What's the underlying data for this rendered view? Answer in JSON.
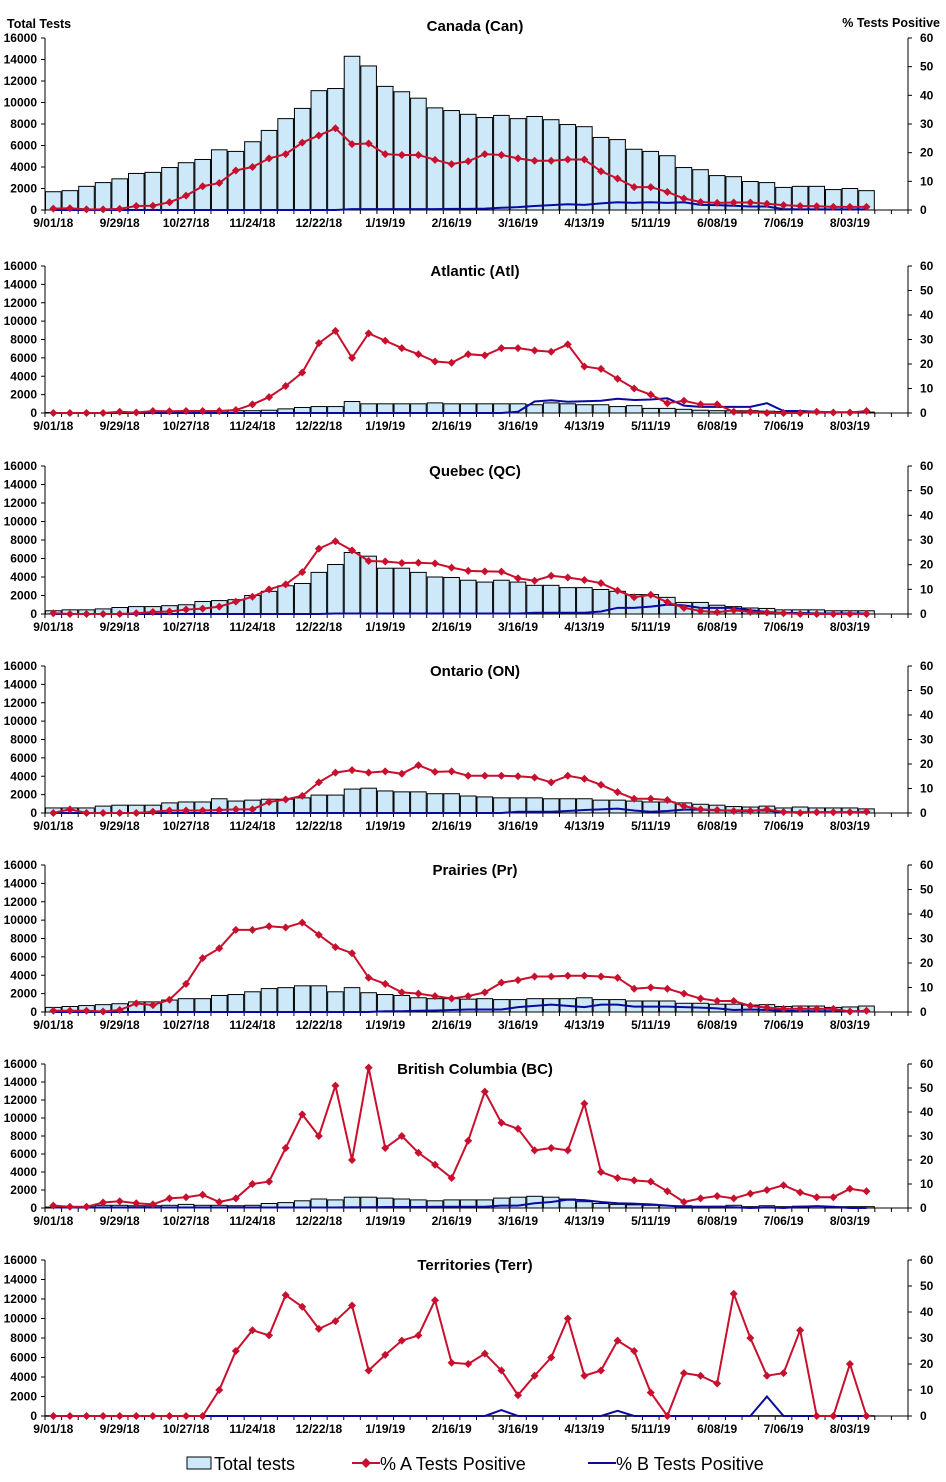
{
  "header": {
    "left_axis_title": "Total Tests",
    "right_axis_title": "% Tests Positive"
  },
  "legend": {
    "total": "Total tests",
    "a": "% A Tests Positive",
    "b": "% B Tests Positive"
  },
  "colors": {
    "bar_fill": "#cde8f8",
    "bar_stroke": "#000000",
    "a_line": "#c8102e",
    "b_line": "#0a0aa0"
  },
  "chart_data": {
    "type": "bar+line",
    "left_ylim": [
      0,
      16000
    ],
    "left_ticks": [
      "0",
      "2000",
      "4000",
      "6000",
      "8000",
      "10000",
      "12000",
      "14000",
      "16000"
    ],
    "right_ylim": [
      0,
      60
    ],
    "right_ticks": [
      "0",
      "10",
      "20",
      "30",
      "40",
      "50",
      "60"
    ],
    "x_tick_labels": [
      "9/01/18",
      "9/29/18",
      "10/27/18",
      "11/24/18",
      "12/22/18",
      "1/19/19",
      "2/16/19",
      "3/16/19",
      "4/13/19",
      "5/11/19",
      "6/08/19",
      "7/06/19",
      "8/03/19"
    ],
    "weeks": [
      "9/01/18",
      "9/08/18",
      "9/15/18",
      "9/22/18",
      "9/29/18",
      "10/06/18",
      "10/13/18",
      "10/20/18",
      "10/27/18",
      "11/03/18",
      "11/10/18",
      "11/17/18",
      "11/24/18",
      "12/01/18",
      "12/08/18",
      "12/15/18",
      "12/22/18",
      "12/29/18",
      "1/05/19",
      "1/12/19",
      "1/19/19",
      "1/26/19",
      "2/02/19",
      "2/09/19",
      "2/16/19",
      "2/23/19",
      "3/02/19",
      "3/09/19",
      "3/16/19",
      "3/23/19",
      "3/30/19",
      "4/06/19",
      "4/13/19",
      "4/20/19",
      "4/27/19",
      "5/04/19",
      "5/11/19",
      "5/18/19",
      "5/25/19",
      "6/01/19",
      "6/08/19",
      "6/15/19",
      "6/22/19",
      "6/29/19",
      "7/06/19",
      "7/13/19",
      "7/20/19",
      "7/27/19",
      "8/03/19",
      "8/10/19"
    ],
    "panels": [
      {
        "title": "Canada (Can)",
        "total": [
          1700,
          1800,
          2200,
          2550,
          2900,
          3400,
          3500,
          3950,
          4400,
          4700,
          5600,
          5450,
          6350,
          7400,
          8500,
          9450,
          11100,
          11300,
          14300,
          13400,
          11500,
          11000,
          10400,
          9500,
          9250,
          8900,
          8600,
          8800,
          8500,
          8700,
          8400,
          7950,
          7750,
          6750,
          6550,
          5650,
          5450,
          5050,
          3950,
          3750,
          3200,
          3100,
          2650,
          2550,
          2100,
          2200,
          2200,
          1900,
          2000,
          1800
        ],
        "a": [
          0.5,
          0.6,
          0.2,
          0.2,
          0.4,
          1.4,
          1.5,
          2.7,
          5,
          8.3,
          9.4,
          13.8,
          15,
          18,
          19.5,
          23.5,
          26,
          28.5,
          23,
          23.2,
          19.5,
          19.2,
          19.2,
          17.5,
          16,
          17,
          19.5,
          19.2,
          18,
          17.2,
          17.2,
          17.6,
          17.6,
          13.5,
          11,
          8,
          8,
          6.3,
          4,
          2.8,
          2.5,
          2.6,
          2.6,
          2.2,
          1.7,
          1.4,
          1.3,
          1.1,
          1.1,
          1.1
        ],
        "b": [
          0,
          0,
          0,
          0,
          0,
          0,
          0,
          0,
          0,
          0,
          0,
          0,
          0,
          0,
          0,
          0,
          0,
          0,
          0.3,
          0.3,
          0.3,
          0.3,
          0.3,
          0.3,
          0.4,
          0.4,
          0.5,
          0.8,
          1,
          1.4,
          1.7,
          2,
          1.8,
          2.3,
          2.7,
          2.5,
          2.7,
          2.5,
          2.7,
          1.8,
          1.7,
          1.5,
          1.2,
          1.2,
          0.3,
          0.2,
          0.2,
          0.2,
          0.2,
          0.2
        ]
      },
      {
        "title": "Atlantic (Atl)",
        "total": [
          50,
          50,
          50,
          50,
          80,
          80,
          100,
          100,
          150,
          150,
          200,
          250,
          250,
          300,
          450,
          600,
          700,
          700,
          1250,
          1000,
          1000,
          1000,
          1000,
          1100,
          1000,
          1000,
          1000,
          1000,
          1000,
          900,
          1100,
          1000,
          900,
          900,
          700,
          800,
          500,
          500,
          400,
          300,
          250,
          250,
          250,
          200,
          150,
          150,
          150,
          100,
          100,
          100
        ],
        "a": [
          0,
          0,
          0,
          0,
          0.5,
          0.2,
          0.8,
          0.7,
          0.8,
          0.8,
          0.8,
          1.2,
          3.5,
          6.5,
          11,
          16.5,
          28.5,
          33.5,
          22.5,
          32.5,
          29.5,
          26.5,
          24,
          21,
          20.5,
          24,
          23.5,
          26.5,
          26.5,
          25.5,
          25,
          28,
          19,
          18,
          14,
          10,
          7.5,
          4,
          5,
          3.5,
          3.5,
          0.5,
          0.5,
          0,
          0,
          0,
          0.5,
          0.2,
          0.2,
          0.8
        ],
        "b": [
          0,
          0,
          0,
          0,
          0,
          0,
          0,
          0,
          0,
          0,
          0,
          0,
          0,
          0,
          0,
          0,
          0,
          0,
          0,
          0,
          0,
          0,
          0,
          0,
          0,
          0,
          0,
          0,
          0.5,
          4.7,
          5.2,
          4.6,
          4.8,
          5,
          5.8,
          5.3,
          5.5,
          6,
          3,
          2.5,
          2.5,
          2.5,
          2.5,
          4,
          0.8,
          0.8,
          0.5,
          0.3,
          0.3,
          0.3
        ]
      },
      {
        "title": "Quebec (QC)",
        "total": [
          350,
          450,
          450,
          550,
          700,
          800,
          800,
          900,
          1000,
          1350,
          1450,
          1550,
          2000,
          2450,
          3050,
          3300,
          4500,
          5350,
          6650,
          6250,
          4950,
          4950,
          4500,
          4000,
          3950,
          3650,
          3450,
          3650,
          3450,
          3100,
          3100,
          2850,
          2850,
          2650,
          2450,
          2100,
          2100,
          1800,
          1250,
          1250,
          950,
          800,
          650,
          600,
          450,
          450,
          450,
          350,
          350,
          350
        ],
        "a": [
          0.3,
          0,
          0,
          0,
          0,
          0.3,
          0.8,
          1,
          1.8,
          2.2,
          3,
          5,
          7,
          10,
          12,
          17,
          26.5,
          29.5,
          25.8,
          21.5,
          21.3,
          20.7,
          20.8,
          20.5,
          18.8,
          17.5,
          17.3,
          17.2,
          14.5,
          13.5,
          15.5,
          14.8,
          13.8,
          12.5,
          9.5,
          6.8,
          7.8,
          4.8,
          2.5,
          1.2,
          0.7,
          1.5,
          0.8,
          0.6,
          0.3,
          0,
          0,
          0,
          0,
          0
        ],
        "b": [
          0,
          0,
          0,
          0,
          0,
          0,
          0,
          0,
          0,
          0,
          0,
          0,
          0,
          0,
          0,
          0,
          0,
          0.2,
          0.2,
          0.2,
          0.2,
          0.2,
          0.2,
          0.2,
          0.2,
          0.2,
          0.2,
          0.2,
          0.2,
          0.5,
          0.5,
          0.5,
          0.5,
          1,
          2.5,
          2.5,
          3,
          3.8,
          3.5,
          2.5,
          2.5,
          2.5,
          1.5,
          0.8,
          0.4,
          0.4,
          0.2,
          0.2,
          0.2,
          0.2
        ]
      },
      {
        "title": "Ontario (ON)",
        "total": [
          550,
          550,
          550,
          750,
          850,
          850,
          850,
          1100,
          1200,
          1200,
          1550,
          1300,
          1400,
          1500,
          1500,
          1650,
          1950,
          1950,
          2600,
          2700,
          2400,
          2300,
          2300,
          2100,
          2100,
          1850,
          1750,
          1650,
          1650,
          1650,
          1550,
          1550,
          1550,
          1400,
          1400,
          1300,
          1200,
          1200,
          1100,
          950,
          850,
          700,
          650,
          750,
          550,
          650,
          550,
          550,
          550,
          450
        ],
        "a": [
          0,
          1.5,
          0,
          0,
          0,
          0,
          0.5,
          1,
          1,
          1,
          1.2,
          1.5,
          1.5,
          4.5,
          5.5,
          7,
          12.5,
          16.5,
          17.5,
          16.5,
          17,
          16,
          19.5,
          16.8,
          17,
          15.2,
          15.2,
          15.2,
          15,
          14.5,
          12.5,
          15.2,
          14,
          11.5,
          8.5,
          5.8,
          5.8,
          5.3,
          2.8,
          1.5,
          1.2,
          0.8,
          0.8,
          1.5,
          0.4,
          0,
          0.3,
          0.3,
          0.3,
          0.5
        ],
        "b": [
          0,
          0,
          0,
          0,
          0,
          0,
          0,
          0,
          0,
          0,
          0,
          0,
          0,
          0,
          0,
          0,
          0,
          0,
          0,
          0,
          0,
          0,
          0,
          0,
          0,
          0,
          0,
          0,
          0.5,
          0.5,
          0.5,
          0.8,
          1.2,
          1.5,
          1.8,
          1,
          0.5,
          0.8,
          1.4,
          1.4,
          1,
          1,
          1,
          1,
          0.3,
          0.3,
          0.3,
          0.3,
          0.3,
          0.3
        ]
      },
      {
        "title": "Prairies (Pr)",
        "total": [
          500,
          600,
          700,
          800,
          900,
          1100,
          1100,
          1300,
          1450,
          1450,
          1800,
          1900,
          2200,
          2550,
          2650,
          2850,
          2850,
          2200,
          2650,
          2100,
          1900,
          1800,
          1550,
          1450,
          1450,
          1400,
          1450,
          1350,
          1350,
          1450,
          1450,
          1450,
          1550,
          1350,
          1350,
          1200,
          1200,
          1200,
          950,
          950,
          850,
          850,
          750,
          800,
          600,
          650,
          650,
          500,
          550,
          650
        ],
        "a": [
          0.5,
          0.5,
          0.5,
          0.2,
          0.8,
          3.5,
          2.8,
          5,
          11.5,
          22,
          26,
          33.5,
          33.5,
          35,
          34.5,
          36.5,
          31.5,
          26.5,
          24,
          14,
          11.5,
          8,
          7.5,
          6.5,
          5.5,
          6.5,
          8,
          12,
          13,
          14.5,
          14.5,
          14.8,
          14.8,
          14.5,
          14,
          9.5,
          10,
          9.5,
          7.5,
          5.5,
          4.5,
          4.5,
          2.5,
          1.8,
          1.3,
          1.3,
          1.3,
          1.3,
          0.2,
          0.5
        ],
        "b": [
          0,
          0,
          0,
          0,
          0,
          0,
          0,
          0,
          0,
          0,
          0,
          0,
          0,
          0,
          0,
          0,
          0,
          0,
          0,
          0,
          0.3,
          0.3,
          0.5,
          0.6,
          0.8,
          1,
          1,
          1,
          2,
          2.5,
          3,
          2.5,
          2,
          3,
          3,
          2.2,
          2.2,
          2.2,
          2,
          1.8,
          1.5,
          0.8,
          1,
          0.8,
          0.5,
          0.3,
          0.3,
          0.3,
          0.3,
          0.3
        ]
      },
      {
        "title": "British Columbia (BC)",
        "total": [
          100,
          100,
          150,
          300,
          300,
          250,
          250,
          300,
          400,
          300,
          300,
          250,
          300,
          500,
          600,
          800,
          1000,
          900,
          1200,
          1200,
          1100,
          1000,
          900,
          800,
          900,
          900,
          900,
          1100,
          1200,
          1300,
          1200,
          1000,
          700,
          500,
          400,
          350,
          300,
          250,
          250,
          200,
          200,
          300,
          150,
          250,
          150,
          200,
          200,
          150,
          150,
          150
        ],
        "a": [
          1,
          0.5,
          0.5,
          2.3,
          2.8,
          2,
          1.5,
          4,
          4.5,
          5.5,
          2.5,
          4,
          10,
          11,
          25,
          39,
          30,
          51,
          20,
          58.5,
          25,
          30,
          23,
          18,
          12.5,
          28,
          48.5,
          35.5,
          33,
          24,
          25,
          24,
          43.5,
          15,
          12.5,
          11.5,
          11,
          7,
          2.5,
          4,
          5,
          4,
          6,
          7.5,
          9.5,
          6.5,
          4.5,
          4.5,
          8,
          7
        ],
        "b": [
          0.2,
          0.2,
          0.2,
          0.2,
          0.2,
          0.2,
          0.2,
          0.2,
          0.2,
          0.2,
          0.2,
          0.2,
          0.2,
          0.2,
          0.2,
          0.2,
          0.2,
          0.2,
          0.3,
          0.3,
          0.4,
          0.4,
          0.4,
          0.5,
          0.5,
          0.5,
          0.5,
          1,
          1,
          2,
          2.5,
          3.5,
          3.3,
          2.5,
          2,
          1.8,
          1.5,
          1,
          0.5,
          0.3,
          0.5,
          0.3,
          0,
          0.3,
          0,
          0.5,
          0.8,
          0.5,
          0,
          0
        ]
      },
      {
        "title": "Territories (Terr)",
        "total": [
          30,
          30,
          30,
          30,
          30,
          30,
          30,
          30,
          30,
          30,
          30,
          30,
          30,
          30,
          30,
          30,
          30,
          30,
          30,
          30,
          30,
          30,
          30,
          30,
          30,
          30,
          30,
          30,
          30,
          30,
          30,
          30,
          30,
          30,
          30,
          30,
          30,
          30,
          30,
          30,
          30,
          30,
          30,
          30,
          30,
          30,
          30,
          30,
          30,
          30
        ],
        "a": [
          0,
          0,
          0,
          0,
          0,
          0,
          0,
          0,
          0,
          0,
          10,
          25,
          33,
          31,
          46.5,
          42,
          33.5,
          36.5,
          42.5,
          17.5,
          23.5,
          29,
          31,
          44.5,
          20.5,
          20,
          24,
          17.5,
          8,
          15.5,
          22.5,
          37.5,
          15.5,
          17.5,
          29,
          25,
          9,
          0,
          16.5,
          15.5,
          12.5,
          47,
          30,
          15.5,
          16.5,
          33,
          0,
          0,
          20,
          0
        ],
        "b": [
          0,
          0,
          0,
          0,
          0,
          0,
          0,
          0,
          0,
          0,
          0,
          0,
          0,
          0,
          0,
          0,
          0,
          0,
          0,
          0,
          0,
          0,
          0,
          0,
          0,
          0,
          0,
          2.3,
          0,
          0,
          0,
          0,
          0,
          0,
          2,
          0,
          0,
          0,
          0,
          0,
          0,
          0,
          0,
          7.5,
          0,
          0,
          0,
          0,
          0,
          0
        ]
      }
    ]
  }
}
